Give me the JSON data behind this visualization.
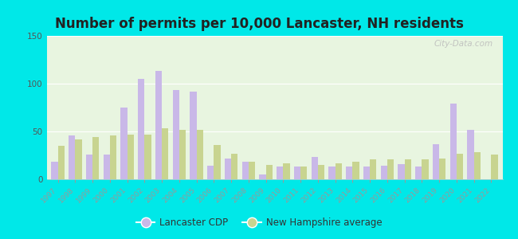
{
  "title": "Number of permits per 10,000 Lancaster, NH residents",
  "years": [
    1997,
    1998,
    1999,
    2000,
    2001,
    2002,
    2003,
    2004,
    2005,
    2006,
    2007,
    2008,
    2009,
    2010,
    2011,
    2012,
    2013,
    2014,
    2015,
    2016,
    2017,
    2018,
    2019,
    2020,
    2021,
    2022
  ],
  "lancaster_cdp": [
    18,
    46,
    26,
    26,
    75,
    105,
    113,
    93,
    92,
    14,
    22,
    18,
    5,
    13,
    13,
    23,
    13,
    13,
    13,
    14,
    16,
    13,
    37,
    79,
    52,
    0
  ],
  "nh_average": [
    35,
    42,
    44,
    46,
    47,
    47,
    53,
    52,
    52,
    36,
    27,
    18,
    15,
    17,
    13,
    15,
    17,
    18,
    21,
    21,
    21,
    21,
    22,
    27,
    28,
    26
  ],
  "bar_color_lancaster": "#c9b8e8",
  "bar_color_nh": "#c8d490",
  "plot_bg_color": "#e8f5e0",
  "outer_bg": "#00e8e8",
  "ylim": [
    0,
    150
  ],
  "yticks": [
    0,
    50,
    100,
    150
  ],
  "title_fontsize": 12,
  "legend_lancaster": "Lancaster CDP",
  "legend_nh": "New Hampshire average",
  "watermark": "City-Data.com"
}
